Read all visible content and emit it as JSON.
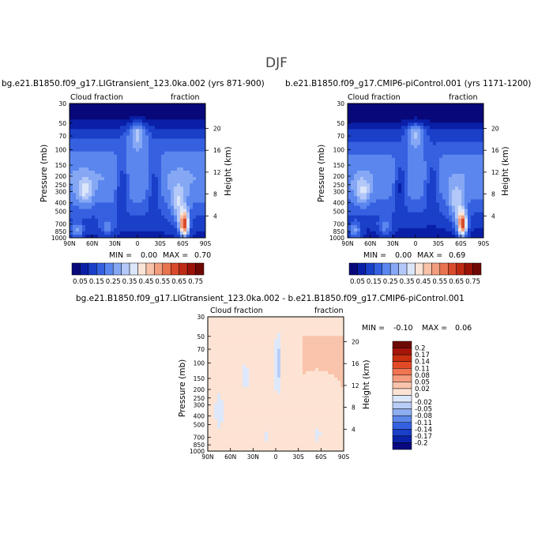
{
  "season": "DJF",
  "panels": [
    {
      "id": "left",
      "title": "bg.e21.B1850.f09_g17.LIGtransient_123.0ka.002 (yrs 871-900)",
      "left_label": "Cloud fraction",
      "right_label": "fraction",
      "ylabel_left": "Pressure (mb)",
      "ylabel_right": "Height (km)",
      "min_label": "MIN =",
      "min_value": "0.00",
      "max_label": "MAX =",
      "max_value": "0.70"
    },
    {
      "id": "right",
      "title": "b.e21.B1850.f09_g17.CMIP6-piControl.001 (yrs 1171-1200)",
      "left_label": "Cloud fraction",
      "right_label": "fraction",
      "ylabel_left": "Pressure (mb)",
      "ylabel_right": "Height (km)",
      "min_label": "MIN =",
      "min_value": "0.00",
      "max_label": "MAX =",
      "max_value": "0.69"
    },
    {
      "id": "diff",
      "title": "bg.e21.B1850.f09_g17.LIGtransient_123.0ka.002 - b.e21.B1850.f09_g17.CMIP6-piControl.001",
      "left_label": "Cloud fraction",
      "right_label": "fraction",
      "ylabel_left": "Pressure (mb)",
      "ylabel_right": "Height (km)",
      "min_label": "MIN =",
      "min_value": "-0.10",
      "max_label": "MAX =",
      "max_value": "0.06"
    }
  ],
  "colorbars": {
    "main": {
      "labels": [
        "0.05",
        "0.15",
        "0.25",
        "0.35",
        "0.45",
        "0.55",
        "0.65",
        "0.75"
      ],
      "colors": [
        "#08087a",
        "#0a1fa8",
        "#1a3fc8",
        "#3560e0",
        "#5a86ee",
        "#86a8f4",
        "#b3c8f8",
        "#dce6fb",
        "#fbe4d6",
        "#f8c2a8",
        "#f29d7e",
        "#e8734f",
        "#d84a2c",
        "#bd2a14",
        "#9a1208",
        "#6e0804"
      ]
    },
    "diff": {
      "labels": [
        "0.2",
        "0.17",
        "0.14",
        "0.11",
        "0.08",
        "0.05",
        "0.02",
        "0",
        "-0.02",
        "-0.05",
        "-0.08",
        "-0.11",
        "-0.14",
        "-0.17",
        "-0.2"
      ],
      "colors": [
        "#6e0804",
        "#a6150a",
        "#c8300f",
        "#e24a26",
        "#f07450",
        "#f59c7e",
        "#f9c4ab",
        "#fde3d4",
        "#dde8fb",
        "#b8cdf6",
        "#8eaef0",
        "#5c86e8",
        "#3560e0",
        "#1a3fc8",
        "#0a22a8",
        "#080880"
      ]
    }
  },
  "chart_data": [
    {
      "type": "heatmap",
      "title": "bg.e21.B1850.f09_g17.LIGtransient_123.0ka.002 (yrs 871-900)",
      "left_string": "Cloud fraction",
      "right_string": "fraction",
      "ylabel": "Pressure (mb)",
      "ylabel_right": "Height (km)",
      "x_ticks": [
        "90N",
        "60N",
        "30N",
        "0",
        "30S",
        "60S",
        "90S"
      ],
      "y_ticks": [
        "30",
        "50",
        "70",
        "100",
        "150",
        "200",
        "250",
        "300",
        "400",
        "500",
        "700",
        "850",
        "1000"
      ],
      "y_right_ticks": [
        "20",
        "16",
        "12",
        "8",
        "4"
      ],
      "min": 0.0,
      "max": 0.7,
      "colorbar_labels": [
        "0.05",
        "0.15",
        "0.25",
        "0.35",
        "0.45",
        "0.55",
        "0.65",
        "0.75"
      ]
    },
    {
      "type": "heatmap",
      "title": "b.e21.B1850.f09_g17.CMIP6-piControl.001 (yrs 1171-1200)",
      "left_string": "Cloud fraction",
      "right_string": "fraction",
      "ylabel": "Pressure (mb)",
      "ylabel_right": "Height (km)",
      "x_ticks": [
        "90N",
        "60N",
        "30N",
        "0",
        "30S",
        "60S",
        "90S"
      ],
      "y_ticks": [
        "30",
        "50",
        "70",
        "100",
        "150",
        "200",
        "250",
        "300",
        "400",
        "500",
        "700",
        "850",
        "1000"
      ],
      "y_right_ticks": [
        "20",
        "16",
        "12",
        "8",
        "4"
      ],
      "min": 0.0,
      "max": 0.69,
      "colorbar_labels": [
        "0.05",
        "0.15",
        "0.25",
        "0.35",
        "0.45",
        "0.55",
        "0.65",
        "0.75"
      ]
    },
    {
      "type": "heatmap",
      "title": "bg.e21.B1850.f09_g17.LIGtransient_123.0ka.002 - b.e21.B1850.f09_g17.CMIP6-piControl.001",
      "left_string": "Cloud fraction",
      "right_string": "fraction",
      "ylabel": "Pressure (mb)",
      "ylabel_right": "Height (km)",
      "x_ticks": [
        "90N",
        "60N",
        "30N",
        "0",
        "30S",
        "60S",
        "90S"
      ],
      "y_ticks": [
        "30",
        "50",
        "70",
        "100",
        "150",
        "200",
        "250",
        "300",
        "400",
        "500",
        "700",
        "850",
        "1000"
      ],
      "y_right_ticks": [
        "20",
        "16",
        "12",
        "8",
        "4"
      ],
      "min": -0.1,
      "max": 0.06,
      "colorbar_labels": [
        "0.2",
        "0.17",
        "0.14",
        "0.11",
        "0.08",
        "0.05",
        "0.02",
        "0",
        "-0.02",
        "-0.05",
        "-0.08",
        "-0.11",
        "-0.14",
        "-0.17",
        "-0.2"
      ]
    }
  ]
}
